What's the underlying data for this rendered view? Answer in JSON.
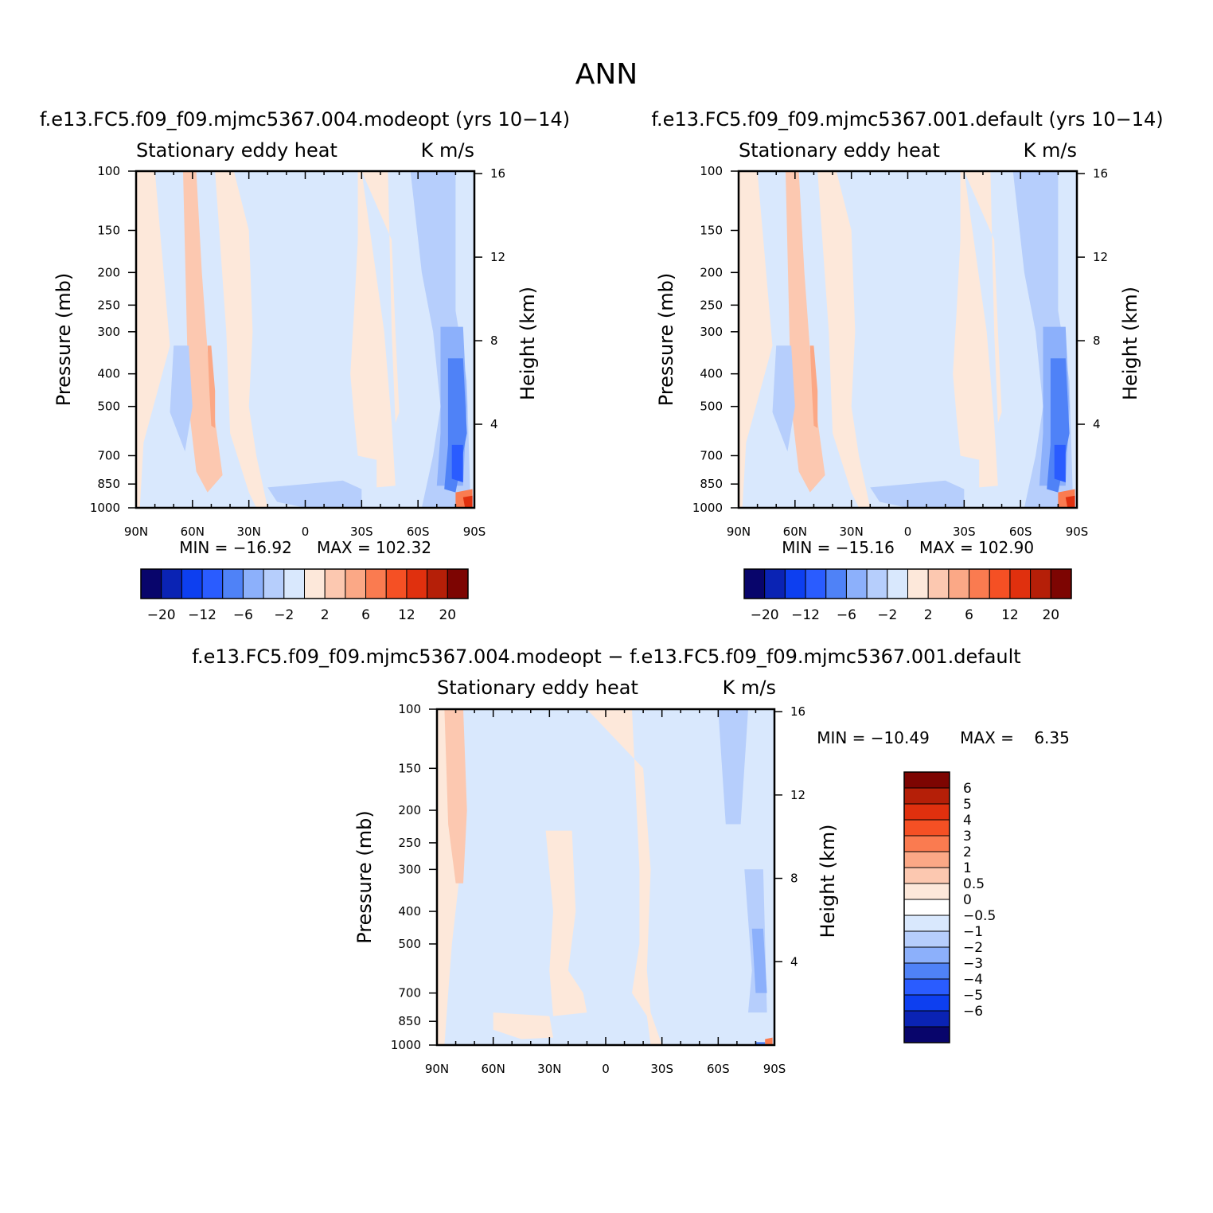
{
  "figure_title": "ANN",
  "colors": {
    "palette_absolute": [
      "#08056b",
      "#0a23b4",
      "#0d3ff0",
      "#2a5cff",
      "#4f82f7",
      "#8cb0fb",
      "#b6cefc",
      "#d9e8fd",
      "#fde8da",
      "#fcc8b0",
      "#fba886",
      "#fa7b50",
      "#f55024",
      "#e0300e",
      "#b51f08",
      "#7d0502"
    ],
    "palette_difference": [
      "#08056b",
      "#0a23b4",
      "#0d3ff0",
      "#2a5cff",
      "#4f82f7",
      "#8cb0fb",
      "#b6cefc",
      "#d9e8fd",
      "#ffffff",
      "#fde8da",
      "#fcc8b0",
      "#fba886",
      "#fa7b50",
      "#f55024",
      "#e0300e",
      "#b51f08",
      "#7d0502"
    ]
  },
  "chart_data": [
    {
      "type": "heatmap",
      "title": "f.e13.FC5.f09_f09.mjmc5367.004.modeopt (yrs 10−14)",
      "subtitle_left": "Stationary eddy heat",
      "subtitle_right": "K m/s",
      "xlabel": "",
      "ylabel": "Pressure (mb)",
      "ylabel_right": "Height (km)",
      "x_ticks": [
        "90N",
        "60N",
        "30N",
        "0",
        "30S",
        "60S",
        "90S"
      ],
      "y_ticks": [
        "100",
        "150",
        "200",
        "250",
        "300",
        "400",
        "500",
        "700",
        "850",
        "1000"
      ],
      "y_right_ticks": [
        "16",
        "12",
        "8",
        "4"
      ],
      "y_scale": "log",
      "ylim": [
        1000,
        100
      ],
      "min_label": "MIN = −16.92",
      "max_label": "MAX = 102.32",
      "min": -16.92,
      "max": 102.32,
      "colorbar_orientation": "horizontal",
      "colorbar_labels": [
        "−20",
        "−12",
        "−6",
        "−2",
        "2",
        "6",
        "12",
        "20"
      ]
    },
    {
      "type": "heatmap",
      "title": "f.e13.FC5.f09_f09.mjmc5367.001.default (yrs 10−14)",
      "subtitle_left": "Stationary eddy heat",
      "subtitle_right": "K m/s",
      "xlabel": "",
      "ylabel": "Pressure (mb)",
      "ylabel_right": "Height (km)",
      "x_ticks": [
        "90N",
        "60N",
        "30N",
        "0",
        "30S",
        "60S",
        "90S"
      ],
      "y_ticks": [
        "100",
        "150",
        "200",
        "250",
        "300",
        "400",
        "500",
        "700",
        "850",
        "1000"
      ],
      "y_right_ticks": [
        "16",
        "12",
        "8",
        "4"
      ],
      "y_scale": "log",
      "ylim": [
        1000,
        100
      ],
      "min_label": "MIN = −15.16",
      "max_label": "MAX = 102.90",
      "min": -15.16,
      "max": 102.9,
      "colorbar_orientation": "horizontal",
      "colorbar_labels": [
        "−20",
        "−12",
        "−6",
        "−2",
        "2",
        "6",
        "12",
        "20"
      ]
    },
    {
      "type": "heatmap",
      "title": "f.e13.FC5.f09_f09.mjmc5367.004.modeopt − f.e13.FC5.f09_f09.mjmc5367.001.default",
      "subtitle_left": "Stationary eddy heat",
      "subtitle_right": "K m/s",
      "xlabel": "",
      "ylabel": "Pressure (mb)",
      "ylabel_right": "Height (km)",
      "x_ticks": [
        "90N",
        "60N",
        "30N",
        "0",
        "30S",
        "60S",
        "90S"
      ],
      "y_ticks": [
        "100",
        "150",
        "200",
        "250",
        "300",
        "400",
        "500",
        "700",
        "850",
        "1000"
      ],
      "y_right_ticks": [
        "16",
        "12",
        "8",
        "4"
      ],
      "y_scale": "log",
      "ylim": [
        1000,
        100
      ],
      "min_label": "MIN = −10.49",
      "max_label": "MAX =    6.35",
      "min": -10.49,
      "max": 6.35,
      "colorbar_orientation": "vertical",
      "colorbar_labels": [
        "6",
        "5",
        "4",
        "3",
        "2",
        "1",
        "0.5",
        "0",
        "−0.5",
        "−1",
        "−2",
        "−3",
        "−4",
        "−5",
        "−6"
      ]
    }
  ]
}
